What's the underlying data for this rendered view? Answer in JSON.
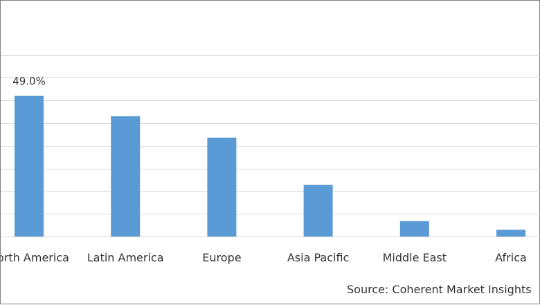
{
  "chart_data": {
    "type": "bar",
    "categories": [
      "North America",
      "Latin America",
      "Europe",
      "Asia Pacific",
      "Middle East",
      "Africa"
    ],
    "values": [
      49.0,
      44.5,
      39.8,
      29.4,
      21.4,
      19.5
    ],
    "data_labels": [
      "49.0%",
      "",
      "",
      "",
      "",
      ""
    ],
    "ylim": [
      18,
      59
    ],
    "grid": true,
    "bar_color": "#5b9bd5",
    "grid_color": "#d9d9d9",
    "source": "Source: Coherent Market Insights"
  }
}
